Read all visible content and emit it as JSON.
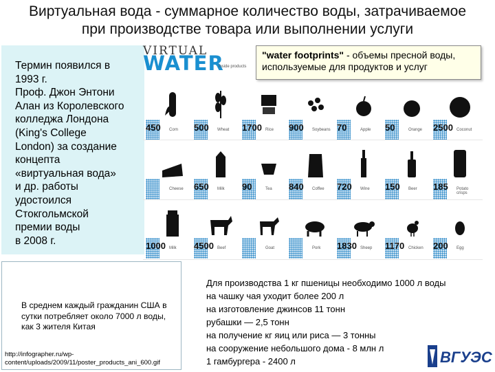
{
  "title_line1": "Виртуальная вода - суммарное количество воды, затрачиваемое",
  "title_line2": "при производстве товара или выполнении услуги",
  "left_text": "Термин появился в\n1993 г.\nПроф. Джон Энтони\nАлан из Королевского\nколледжа Лондона\n(King's College\nLondon) за создание\nконцепта\n«виртуальная вода»\nи др. работы\nудостоился\nСтокгольмской\nпремии воды\nв 2008 г.",
  "note_text": "В среднем каждый гражданин США в\nсутки потребляет около 7000 л воды,\nкак 3 жителя Китая",
  "note_url": "http://infographer.ru/wp-\ncontent/uploads/2009/11/poster_products_ani_600.gif",
  "footprint_bold": "\"water footprints\"",
  "footprint_rest": " - объемы пресной воды, используемые для продуктов и услуг",
  "infographic": {
    "title1": "VIRTUAL",
    "title2": "WATER",
    "subtitle": "inside products",
    "rows": [
      [
        {
          "value": "450",
          "name": "Corn"
        },
        {
          "value": "500",
          "name": "Wheat"
        },
        {
          "value": "1700",
          "name": "Rice"
        },
        {
          "value": "900",
          "name": "Soybeans"
        },
        {
          "value": "70",
          "name": "Apple"
        },
        {
          "value": "50",
          "name": "Orange"
        },
        {
          "value": "2500",
          "name": "Coconut"
        }
      ],
      [
        {
          "value": "",
          "name": "Cheese"
        },
        {
          "value": "650",
          "name": "Milk"
        },
        {
          "value": "90",
          "name": "Tea"
        },
        {
          "value": "840",
          "name": "Coffee"
        },
        {
          "value": "720",
          "name": "Wine"
        },
        {
          "value": "150",
          "name": "Beer"
        },
        {
          "value": "185",
          "name": "Potato crisps"
        }
      ],
      [
        {
          "value": "1000",
          "name": "Milk"
        },
        {
          "value": "4500",
          "name": "Beef"
        },
        {
          "value": "",
          "name": "Goat"
        },
        {
          "value": "",
          "name": "Pork"
        },
        {
          "value": "1830",
          "name": "Sheep"
        },
        {
          "value": "1170",
          "name": "Chicken"
        },
        {
          "value": "200",
          "name": "Egg"
        }
      ]
    ]
  },
  "facts": "Для производства 1 кг пшеницы необходимо 1000 л воды\nна чашку чая уходит более 200 л\nна изготовление джинсов 11 тонн\nрубашки — 2,5 тонн\nна получение кг яиц или риса — 3 тонны\nна сооружение небольшого дома - 8 млн л\n1 гамбургера - 2400 л",
  "logo_text": "ВГУЭС",
  "colors": {
    "accent": "#1a8fd0",
    "left_box": "#dcf3f6",
    "note_box": "#ffffe8"
  }
}
